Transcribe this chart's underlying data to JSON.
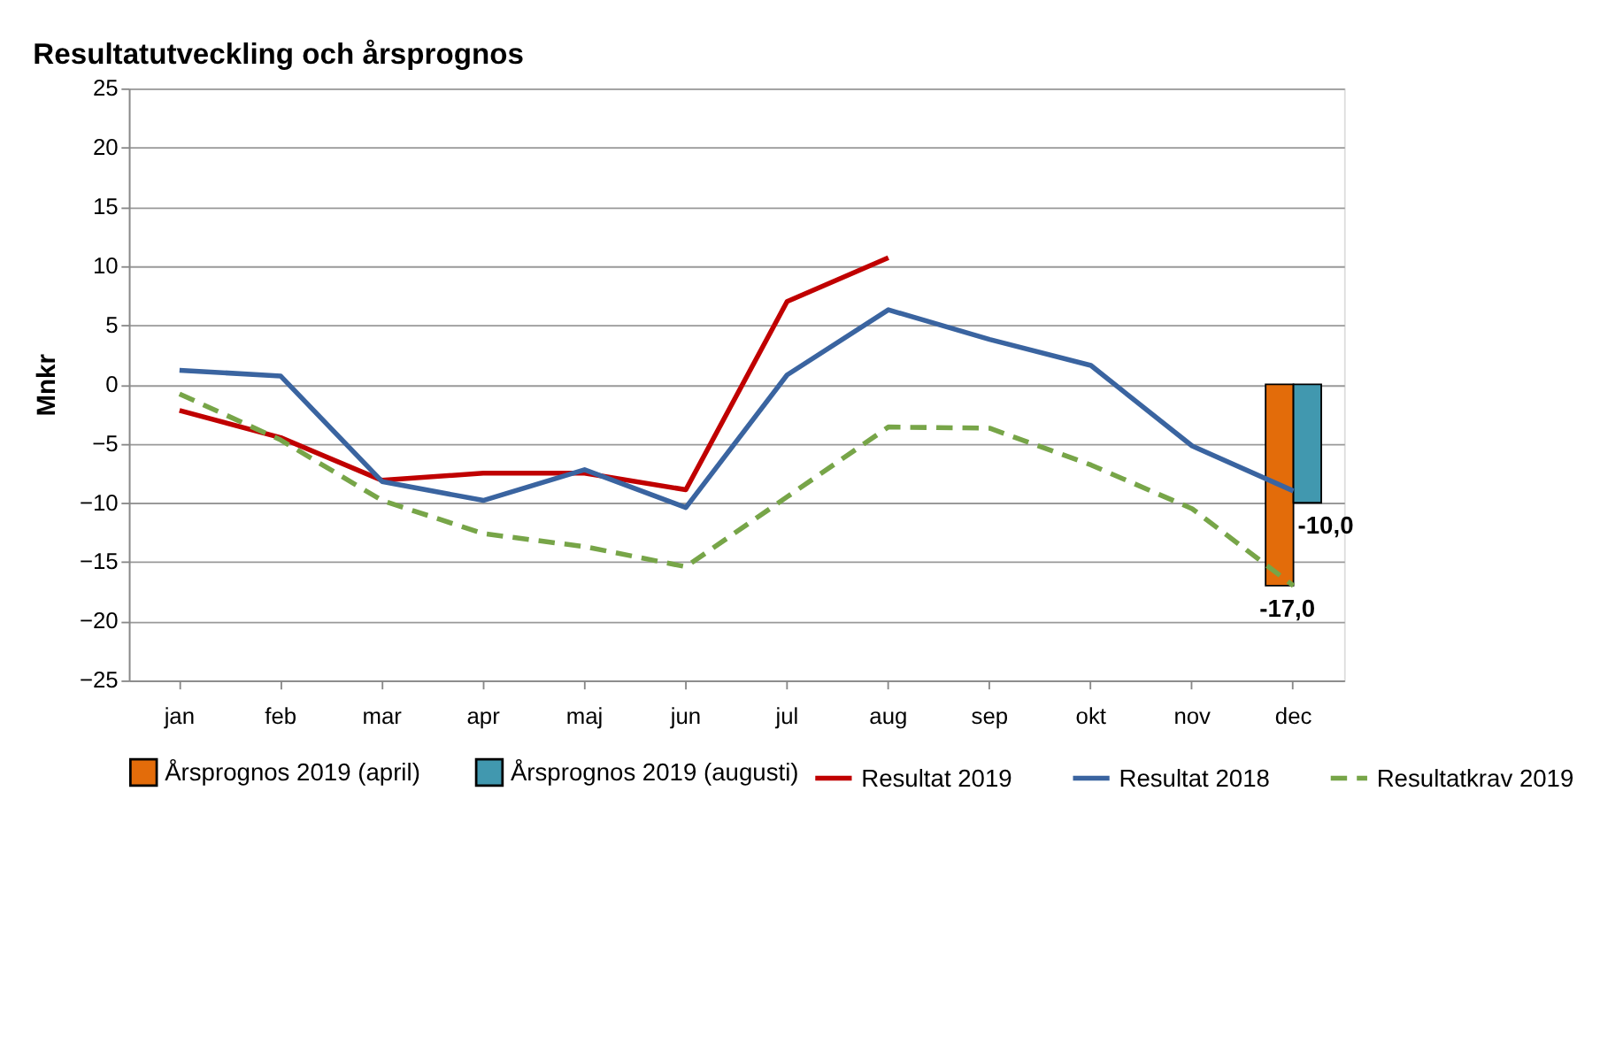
{
  "chart_data": {
    "type": "line",
    "title": "Resultatutveckling och årsprognos",
    "ylabel": "Mnkr",
    "categories": [
      "jan",
      "feb",
      "mar",
      "apr",
      "maj",
      "jun",
      "jul",
      "aug",
      "sep",
      "okt",
      "nov",
      "dec"
    ],
    "series": [
      {
        "name": "Årsprognos 2019 (april)",
        "type": "bar",
        "color": "#e36c0a",
        "values": [
          null,
          null,
          null,
          null,
          null,
          null,
          null,
          null,
          null,
          null,
          null,
          -17.0
        ],
        "value_labels": [
          null,
          null,
          null,
          null,
          null,
          null,
          null,
          null,
          null,
          null,
          null,
          "-17,0"
        ]
      },
      {
        "name": "Årsprognos 2019 (augusti)",
        "type": "bar",
        "color": "#4198af",
        "values": [
          null,
          null,
          null,
          null,
          null,
          null,
          null,
          null,
          null,
          null,
          null,
          -10.0
        ],
        "value_labels": [
          null,
          null,
          null,
          null,
          null,
          null,
          null,
          null,
          null,
          null,
          null,
          "-10,0"
        ]
      },
      {
        "name": "Resultat 2019",
        "color": "#c00000",
        "line_style": "solid",
        "values": [
          -2.2,
          -4.5,
          -8.1,
          -7.5,
          -7.5,
          -8.9,
          7.0,
          10.7,
          null,
          null,
          null,
          null
        ]
      },
      {
        "name": "Resultat 2018",
        "color": "#3a64a0",
        "line_style": "solid",
        "values": [
          1.2,
          0.7,
          -8.2,
          -9.8,
          -7.2,
          -10.4,
          0.8,
          6.3,
          3.8,
          1.6,
          -5.2,
          -9.0
        ]
      },
      {
        "name": "Resultatkrav 2019",
        "color": "#77a548",
        "line_style": "dashed",
        "values": [
          -0.8,
          -4.7,
          -9.8,
          -12.6,
          -13.7,
          -15.4,
          -9.5,
          -3.6,
          -3.7,
          -6.8,
          -10.5,
          -17.0
        ]
      }
    ],
    "ylim": [
      -25,
      25
    ],
    "yticks": [
      -25,
      -20,
      -15,
      -10,
      -5,
      0,
      5,
      10,
      15,
      20,
      25
    ],
    "grid": "y",
    "legend": "bottom",
    "marker": "none"
  }
}
